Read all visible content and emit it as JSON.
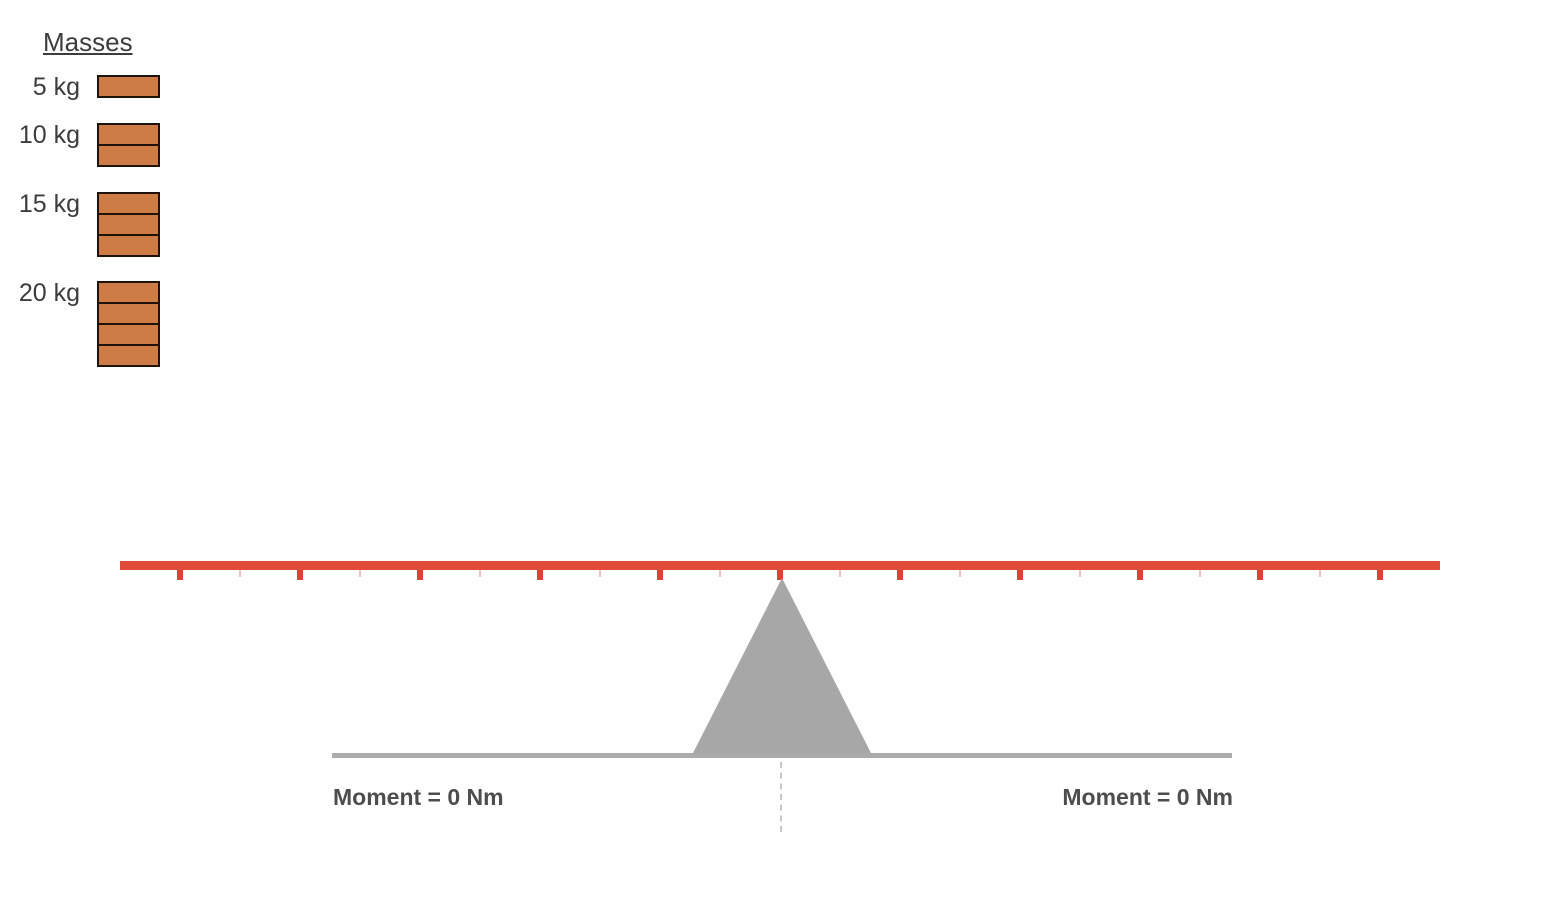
{
  "palette": {
    "title": "Masses",
    "items": [
      {
        "label": "5 kg",
        "mass_kg": 5,
        "bricks": 1
      },
      {
        "label": "10 kg",
        "mass_kg": 10,
        "bricks": 2
      },
      {
        "label": "15 kg",
        "mass_kg": 15,
        "bricks": 3
      },
      {
        "label": "20 kg",
        "mass_kg": 20,
        "bricks": 4
      }
    ]
  },
  "beam": {
    "ticks_total": 21,
    "major_tick_count": 11,
    "minor_tick_count": 10
  },
  "moments": {
    "left_label": "Moment = 0 Nm",
    "right_label": "Moment = 0 Nm",
    "left_value": 0,
    "right_value": 0,
    "unit": "Nm"
  },
  "colors": {
    "beam_red": "#E14B3A",
    "tick_major": "#DB4434",
    "tick_minor": "#F0C7C3",
    "brick_fill": "#CE7C46",
    "brick_border": "#1E1309",
    "fulcrum_gray": "#A7A7A7",
    "ground_gray": "#ABABAB",
    "dash_gray": "#C6C6C6",
    "label_text": "#3C3C3C",
    "moment_text": "#4D4D4D"
  }
}
